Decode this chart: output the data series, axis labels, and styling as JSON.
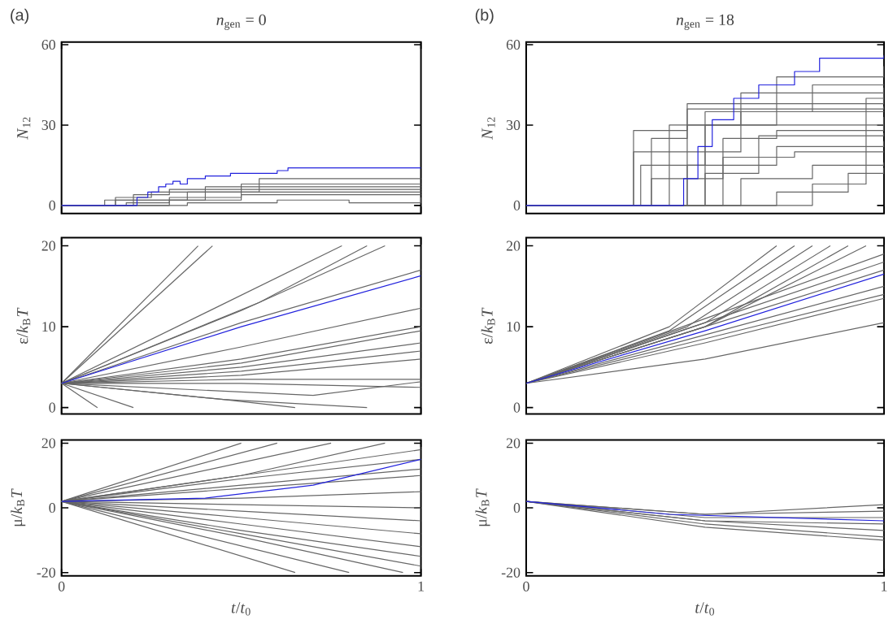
{
  "chart_data": [
    {
      "type": "step",
      "title": "*n*$_{gen}$ = 0",
      "ylabel": "*N*$_{12}$",
      "annotations": [
        "(a)"
      ],
      "xlim": [
        0,
        1
      ],
      "xticks": [
        0,
        1
      ],
      "ylim": [
        -3,
        61
      ],
      "yticks": [
        0,
        30,
        60
      ],
      "tick_labels": "y",
      "marker": "none",
      "line_style": "solid",
      "series": [
        {
          "color": "#666666",
          "x": [
            0,
            0.12,
            0.2,
            0.3,
            1
          ],
          "values": [
            0,
            2,
            4,
            6,
            6
          ]
        },
        {
          "color": "#666666",
          "x": [
            0,
            0.15,
            0.25,
            0.55,
            1
          ],
          "values": [
            0,
            3,
            5,
            10,
            10
          ]
        },
        {
          "color": "#666666",
          "x": [
            0,
            0.18,
            0.3,
            0.5,
            1
          ],
          "values": [
            0,
            1,
            3,
            8,
            8
          ]
        },
        {
          "color": "#666666",
          "x": [
            0,
            0.2,
            0.35,
            1
          ],
          "values": [
            0,
            2,
            5,
            5
          ]
        },
        {
          "color": "#666666",
          "x": [
            0,
            0.35,
            0.6,
            0.8,
            1
          ],
          "values": [
            0,
            1,
            2,
            1,
            3
          ]
        },
        {
          "color": "#666666",
          "x": [
            0,
            0.3,
            0.5,
            0.7,
            1
          ],
          "values": [
            0,
            2,
            4,
            4,
            4
          ]
        },
        {
          "color": "#666666",
          "x": [
            0,
            0.15,
            0.4,
            1
          ],
          "values": [
            0,
            2,
            7,
            7
          ]
        },
        {
          "color": "#2222dd",
          "x": [
            0,
            0.21,
            0.24,
            0.27,
            0.29,
            0.31,
            0.33,
            0.35,
            0.4,
            0.45,
            0.47,
            0.6,
            0.63,
            1
          ],
          "values": [
            0,
            3,
            5,
            7,
            8,
            9,
            8,
            10,
            11,
            11,
            12,
            13,
            14,
            14
          ]
        }
      ]
    },
    {
      "type": "step",
      "title": "*n*$_{gen}$ = 18",
      "ylabel": "*N*$_{12}$",
      "annotations": [
        "(b)"
      ],
      "xlim": [
        0,
        1
      ],
      "xticks": [
        0,
        1
      ],
      "ylim": [
        -3,
        61
      ],
      "yticks": [
        0,
        30,
        60
      ],
      "tick_labels": "y",
      "marker": "none",
      "line_style": "solid",
      "series": [
        {
          "color": "#666666",
          "x": [
            0,
            0.17,
            0.35,
            0.45,
            1
          ],
          "values": [
            0,
            0,
            25,
            38,
            40
          ]
        },
        {
          "color": "#666666",
          "x": [
            0,
            0.18,
            0.3,
            0.4,
            1
          ],
          "values": [
            0,
            0,
            20,
            30,
            33
          ]
        },
        {
          "color": "#666666",
          "x": [
            0,
            0.2,
            0.32,
            0.5,
            0.8,
            1
          ],
          "values": [
            0,
            0,
            15,
            35,
            45,
            45
          ]
        },
        {
          "color": "#666666",
          "x": [
            0,
            0.22,
            0.35,
            0.55,
            0.7,
            1
          ],
          "values": [
            0,
            0,
            10,
            25,
            28,
            30
          ]
        },
        {
          "color": "#666666",
          "x": [
            0,
            0.25,
            0.4,
            0.6,
            1
          ],
          "values": [
            0,
            0,
            20,
            42,
            44
          ]
        },
        {
          "color": "#666666",
          "x": [
            0,
            0.28,
            0.45,
            0.7,
            1
          ],
          "values": [
            0,
            0,
            15,
            22,
            24
          ]
        },
        {
          "color": "#666666",
          "x": [
            0,
            0.3,
            0.5,
            0.7,
            1
          ],
          "values": [
            0,
            0,
            30,
            48,
            52
          ]
        },
        {
          "color": "#666666",
          "x": [
            0,
            0.35,
            0.55,
            0.75,
            1
          ],
          "values": [
            0,
            0,
            18,
            20,
            20
          ]
        },
        {
          "color": "#666666",
          "x": [
            0,
            0.4,
            0.6,
            0.8,
            1
          ],
          "values": [
            0,
            0,
            10,
            15,
            16
          ]
        },
        {
          "color": "#666666",
          "x": [
            0,
            0.5,
            0.7,
            0.9,
            1
          ],
          "values": [
            0,
            0,
            5,
            12,
            14
          ]
        },
        {
          "color": "#666666",
          "x": [
            0,
            0.6,
            0.8,
            0.95,
            1
          ],
          "values": [
            0,
            0,
            8,
            40,
            42
          ]
        },
        {
          "color": "#666666",
          "x": [
            0,
            0.19,
            0.3,
            0.45,
            1
          ],
          "values": [
            0,
            0,
            28,
            36,
            37
          ]
        },
        {
          "color": "#666666",
          "x": [
            0,
            0.24,
            0.45,
            0.6,
            1
          ],
          "values": [
            0,
            0,
            30,
            35,
            35
          ]
        },
        {
          "color": "#666666",
          "x": [
            0,
            0.33,
            0.5,
            0.65,
            1
          ],
          "values": [
            0,
            0,
            12,
            26,
            27
          ]
        },
        {
          "color": "#2222dd",
          "x": [
            0,
            0.4,
            0.44,
            0.48,
            0.52,
            0.58,
            0.65,
            0.75,
            0.82,
            1
          ],
          "values": [
            0,
            0,
            10,
            22,
            32,
            40,
            45,
            50,
            55,
            56
          ]
        }
      ]
    },
    {
      "type": "line",
      "ylabel": "ε/*k*$_{B}$*T*",
      "xlim": [
        0,
        1
      ],
      "xticks": [
        0,
        1
      ],
      "ylim": [
        -0.8,
        21
      ],
      "yticks": [
        0,
        10,
        20
      ],
      "tick_labels": "y",
      "marker": "none",
      "line_style": "solid",
      "series": [
        {
          "color": "#666666",
          "x": [
            0,
            0.38
          ],
          "values": [
            3,
            20
          ]
        },
        {
          "color": "#666666",
          "x": [
            0,
            0.42
          ],
          "values": [
            3,
            20
          ]
        },
        {
          "color": "#666666",
          "x": [
            0,
            0.78
          ],
          "values": [
            3,
            20
          ]
        },
        {
          "color": "#666666",
          "x": [
            0,
            0.55,
            0.85
          ],
          "values": [
            3,
            13,
            20
          ]
        },
        {
          "color": "#666666",
          "x": [
            0,
            0.5,
            0.9
          ],
          "values": [
            3,
            12,
            20
          ]
        },
        {
          "color": "#666666",
          "x": [
            0,
            0.5,
            1
          ],
          "values": [
            3,
            10.5,
            17
          ]
        },
        {
          "color": "#666666",
          "x": [
            0,
            0.5,
            1
          ],
          "values": [
            3,
            7.5,
            12.3
          ]
        },
        {
          "color": "#666666",
          "x": [
            0,
            0.5,
            1
          ],
          "values": [
            3,
            6,
            10
          ]
        },
        {
          "color": "#666666",
          "x": [
            0,
            0.5,
            1
          ],
          "values": [
            3,
            5.5,
            9.5
          ]
        },
        {
          "color": "#666666",
          "x": [
            0,
            0.5,
            1
          ],
          "values": [
            3,
            5,
            8
          ]
        },
        {
          "color": "#666666",
          "x": [
            0,
            0.5,
            1
          ],
          "values": [
            3,
            4.5,
            7
          ]
        },
        {
          "color": "#666666",
          "x": [
            0,
            0.5,
            1
          ],
          "values": [
            3,
            4,
            6
          ]
        },
        {
          "color": "#666666",
          "x": [
            0,
            0.5,
            1
          ],
          "values": [
            3,
            3.5,
            3.5
          ]
        },
        {
          "color": "#666666",
          "x": [
            0,
            0.5,
            1
          ],
          "values": [
            3,
            3,
            2.5
          ]
        },
        {
          "color": "#666666",
          "x": [
            0,
            0.7,
            1
          ],
          "values": [
            3,
            1.5,
            3.2
          ]
        },
        {
          "color": "#666666",
          "x": [
            0,
            0.45,
            0.65
          ],
          "values": [
            3,
            1,
            0
          ]
        },
        {
          "color": "#666666",
          "x": [
            0,
            0.1
          ],
          "values": [
            3,
            0
          ]
        },
        {
          "color": "#666666",
          "x": [
            0,
            0.2
          ],
          "values": [
            3,
            0
          ]
        },
        {
          "color": "#666666",
          "x": [
            0,
            0.45,
            0.85
          ],
          "values": [
            3,
            1,
            0
          ]
        },
        {
          "color": "#2222dd",
          "x": [
            0,
            0.5,
            1
          ],
          "values": [
            3,
            10,
            16.3
          ]
        }
      ]
    },
    {
      "type": "line",
      "ylabel": "ε/*k*$_{B}$*T*",
      "xlim": [
        0,
        1
      ],
      "xticks": [
        0,
        1
      ],
      "ylim": [
        -0.8,
        21
      ],
      "yticks": [
        0,
        10,
        20
      ],
      "tick_labels": "y",
      "marker": "none",
      "line_style": "solid",
      "series": [
        {
          "color": "#666666",
          "x": [
            0,
            0.4,
            0.7
          ],
          "values": [
            3,
            10,
            20
          ]
        },
        {
          "color": "#666666",
          "x": [
            0,
            0.4,
            0.75
          ],
          "values": [
            3,
            9.5,
            20
          ]
        },
        {
          "color": "#666666",
          "x": [
            0,
            0.45,
            0.8
          ],
          "values": [
            3,
            10,
            20
          ]
        },
        {
          "color": "#666666",
          "x": [
            0,
            0.5,
            0.85
          ],
          "values": [
            3,
            10.5,
            20
          ]
        },
        {
          "color": "#666666",
          "x": [
            0,
            0.5,
            0.9
          ],
          "values": [
            3,
            10,
            20
          ]
        },
        {
          "color": "#666666",
          "x": [
            0,
            0.5,
            0.95
          ],
          "values": [
            3,
            10,
            20
          ]
        },
        {
          "color": "#666666",
          "x": [
            0,
            0.5,
            1
          ],
          "values": [
            3,
            11,
            19
          ]
        },
        {
          "color": "#666666",
          "x": [
            0,
            0.5,
            1
          ],
          "values": [
            3,
            10.5,
            18
          ]
        },
        {
          "color": "#666666",
          "x": [
            0,
            0.5,
            1
          ],
          "values": [
            3,
            10,
            17
          ]
        },
        {
          "color": "#666666",
          "x": [
            0,
            0.5,
            1
          ],
          "values": [
            3,
            9,
            15
          ]
        },
        {
          "color": "#666666",
          "x": [
            0,
            0.5,
            1
          ],
          "values": [
            3,
            8.5,
            14
          ]
        },
        {
          "color": "#666666",
          "x": [
            0,
            0.5,
            1
          ],
          "values": [
            3,
            8,
            13.5
          ]
        },
        {
          "color": "#666666",
          "x": [
            0,
            0.5,
            1
          ],
          "values": [
            3,
            6,
            10.5
          ]
        },
        {
          "color": "#2222dd",
          "x": [
            0,
            0.5,
            1
          ],
          "values": [
            3,
            9.5,
            16.5
          ]
        }
      ]
    },
    {
      "type": "line",
      "ylabel": "μ/*k*$_{B}$*T*",
      "xlabel": "*t*/*t*$_{0}$",
      "xlim": [
        0,
        1
      ],
      "xticks": [
        0,
        1
      ],
      "ylim": [
        -21,
        21
      ],
      "yticks": [
        -20,
        0,
        20
      ],
      "marker": "none",
      "line_style": "solid",
      "series": [
        {
          "color": "#666666",
          "x": [
            0,
            0.5
          ],
          "values": [
            2,
            20
          ]
        },
        {
          "color": "#666666",
          "x": [
            0,
            0.6
          ],
          "values": [
            2,
            20
          ]
        },
        {
          "color": "#666666",
          "x": [
            0,
            0.75
          ],
          "values": [
            2,
            20
          ]
        },
        {
          "color": "#666666",
          "x": [
            0,
            0.5,
            0.9
          ],
          "values": [
            2,
            10,
            20
          ]
        },
        {
          "color": "#666666",
          "x": [
            0,
            0.5,
            1
          ],
          "values": [
            2,
            10,
            18
          ]
        },
        {
          "color": "#666666",
          "x": [
            0,
            0.5,
            1
          ],
          "values": [
            2,
            9,
            15
          ]
        },
        {
          "color": "#666666",
          "x": [
            0,
            0.5,
            1
          ],
          "values": [
            2,
            7,
            12
          ]
        },
        {
          "color": "#666666",
          "x": [
            0,
            0.5,
            1
          ],
          "values": [
            2,
            6,
            10
          ]
        },
        {
          "color": "#666666",
          "x": [
            0,
            0.5,
            1
          ],
          "values": [
            2,
            3,
            5
          ]
        },
        {
          "color": "#666666",
          "x": [
            0,
            0.5,
            1
          ],
          "values": [
            2,
            1,
            0
          ]
        },
        {
          "color": "#666666",
          "x": [
            0,
            0.5,
            1
          ],
          "values": [
            2,
            -1,
            -4
          ]
        },
        {
          "color": "#666666",
          "x": [
            0,
            0.5,
            1
          ],
          "values": [
            2,
            -3,
            -8
          ]
        },
        {
          "color": "#666666",
          "x": [
            0,
            0.5,
            1
          ],
          "values": [
            2,
            -5,
            -12
          ]
        },
        {
          "color": "#666666",
          "x": [
            0,
            0.5,
            1
          ],
          "values": [
            2,
            -7,
            -15
          ]
        },
        {
          "color": "#666666",
          "x": [
            0,
            0.5,
            1
          ],
          "values": [
            2,
            -8,
            -18
          ]
        },
        {
          "color": "#666666",
          "x": [
            0,
            0.65
          ],
          "values": [
            2,
            -20
          ]
        },
        {
          "color": "#666666",
          "x": [
            0,
            0.8
          ],
          "values": [
            2,
            -20
          ]
        },
        {
          "color": "#666666",
          "x": [
            0,
            0.5,
            0.95
          ],
          "values": [
            2,
            -9,
            -20
          ]
        },
        {
          "color": "#2222dd",
          "x": [
            0,
            0.4,
            0.7,
            1
          ],
          "values": [
            2,
            3,
            7,
            15
          ]
        }
      ]
    },
    {
      "type": "line",
      "ylabel": "μ/*k*$_{B}$*T*",
      "xlabel": "*t*/*t*$_{0}$",
      "xlim": [
        0,
        1
      ],
      "xticks": [
        0,
        1
      ],
      "ylim": [
        -21,
        21
      ],
      "yticks": [
        -20,
        0,
        20
      ],
      "marker": "none",
      "line_style": "solid",
      "series": [
        {
          "color": "#666666",
          "x": [
            0,
            0.5,
            1
          ],
          "values": [
            2,
            -2,
            1
          ]
        },
        {
          "color": "#666666",
          "x": [
            0,
            0.5,
            1
          ],
          "values": [
            2,
            -2,
            -1
          ]
        },
        {
          "color": "#666666",
          "x": [
            0,
            0.5,
            1
          ],
          "values": [
            2,
            -3,
            -3
          ]
        },
        {
          "color": "#666666",
          "x": [
            0,
            0.5,
            1
          ],
          "values": [
            2,
            -4,
            -5
          ]
        },
        {
          "color": "#666666",
          "x": [
            0,
            0.5,
            1
          ],
          "values": [
            2,
            -4,
            -7
          ]
        },
        {
          "color": "#666666",
          "x": [
            0,
            0.5,
            1
          ],
          "values": [
            2,
            -5,
            -9
          ]
        },
        {
          "color": "#666666",
          "x": [
            0,
            0.5,
            1
          ],
          "values": [
            2,
            -6,
            -10
          ]
        },
        {
          "color": "#2222dd",
          "x": [
            0,
            0.4,
            1
          ],
          "values": [
            2,
            -2,
            -4
          ]
        }
      ]
    }
  ]
}
